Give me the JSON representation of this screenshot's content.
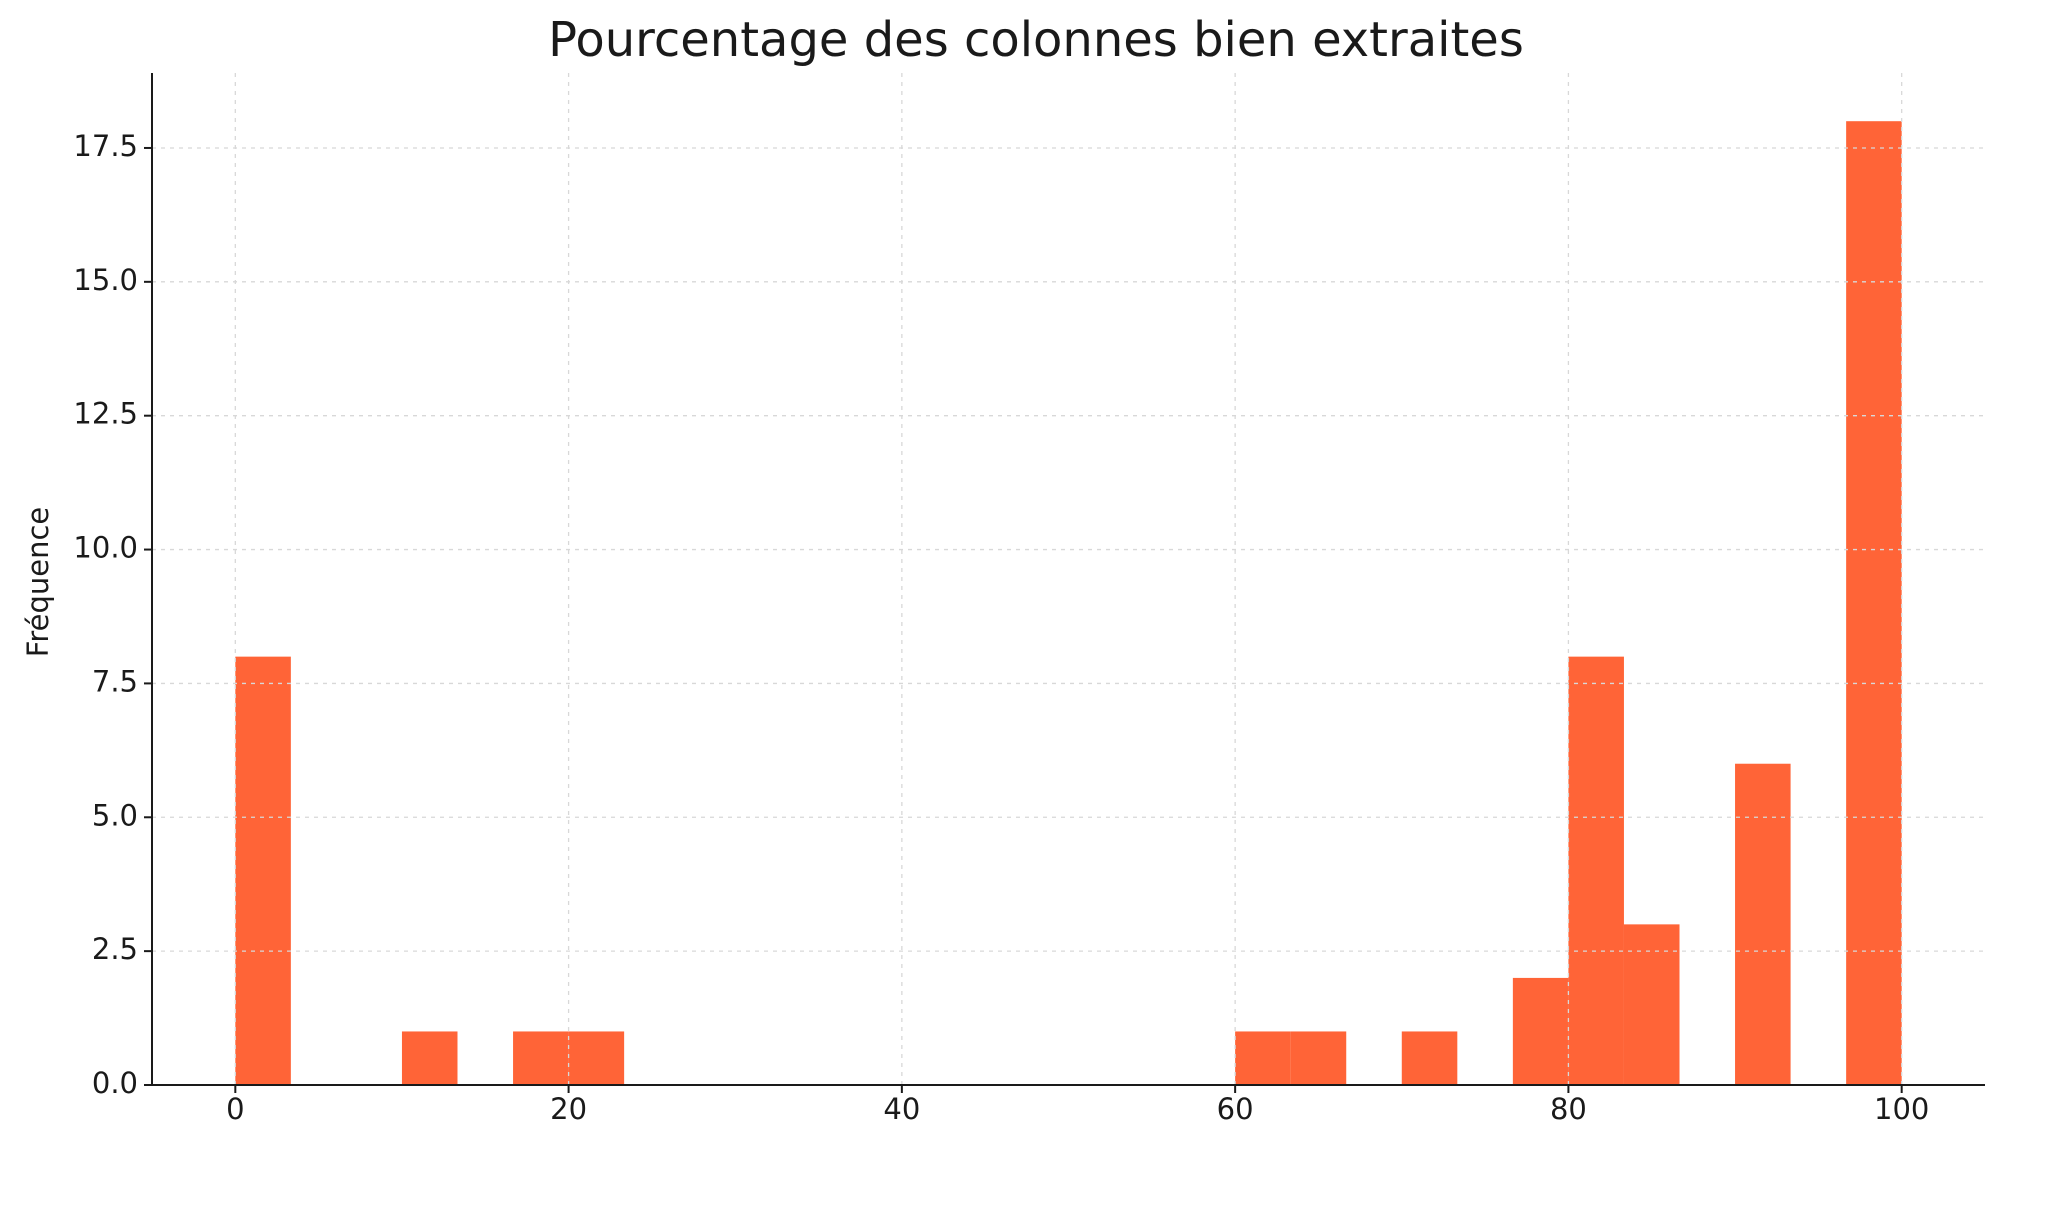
{
  "chart_data": {
    "type": "histogram",
    "title": "Pourcentage des colonnes bien extraites",
    "ylabel": "Fréquence",
    "bins": [
      0,
      3.333,
      6.667,
      10,
      13.333,
      16.667,
      20,
      23.333,
      26.667,
      30,
      33.333,
      36.667,
      40,
      43.333,
      46.667,
      50,
      53.333,
      56.667,
      60,
      63.333,
      66.667,
      70,
      73.333,
      76.667,
      80,
      83.333,
      86.667,
      90,
      93.333,
      96.667,
      100
    ],
    "counts": [
      8,
      0,
      0,
      1,
      0,
      1,
      1,
      0,
      0,
      0,
      0,
      0,
      0,
      0,
      0,
      0,
      0,
      0,
      1,
      1,
      0,
      1,
      0,
      2,
      8,
      3,
      0,
      6,
      0,
      18
    ],
    "color": "#ff6437",
    "xlim": [
      -5,
      105
    ],
    "xticks": [
      0,
      20,
      40,
      60,
      80,
      100
    ],
    "ylim": [
      0,
      18.9
    ],
    "yticks": [
      {
        "value": 0,
        "label": "0.0"
      },
      2.5,
      {
        "value": 5,
        "label": "5.0"
      },
      7.5,
      {
        "value": 10,
        "label": "10.0"
      },
      12.5,
      {
        "value": 15,
        "label": "15.0"
      },
      17.5
    ],
    "grid": true
  }
}
